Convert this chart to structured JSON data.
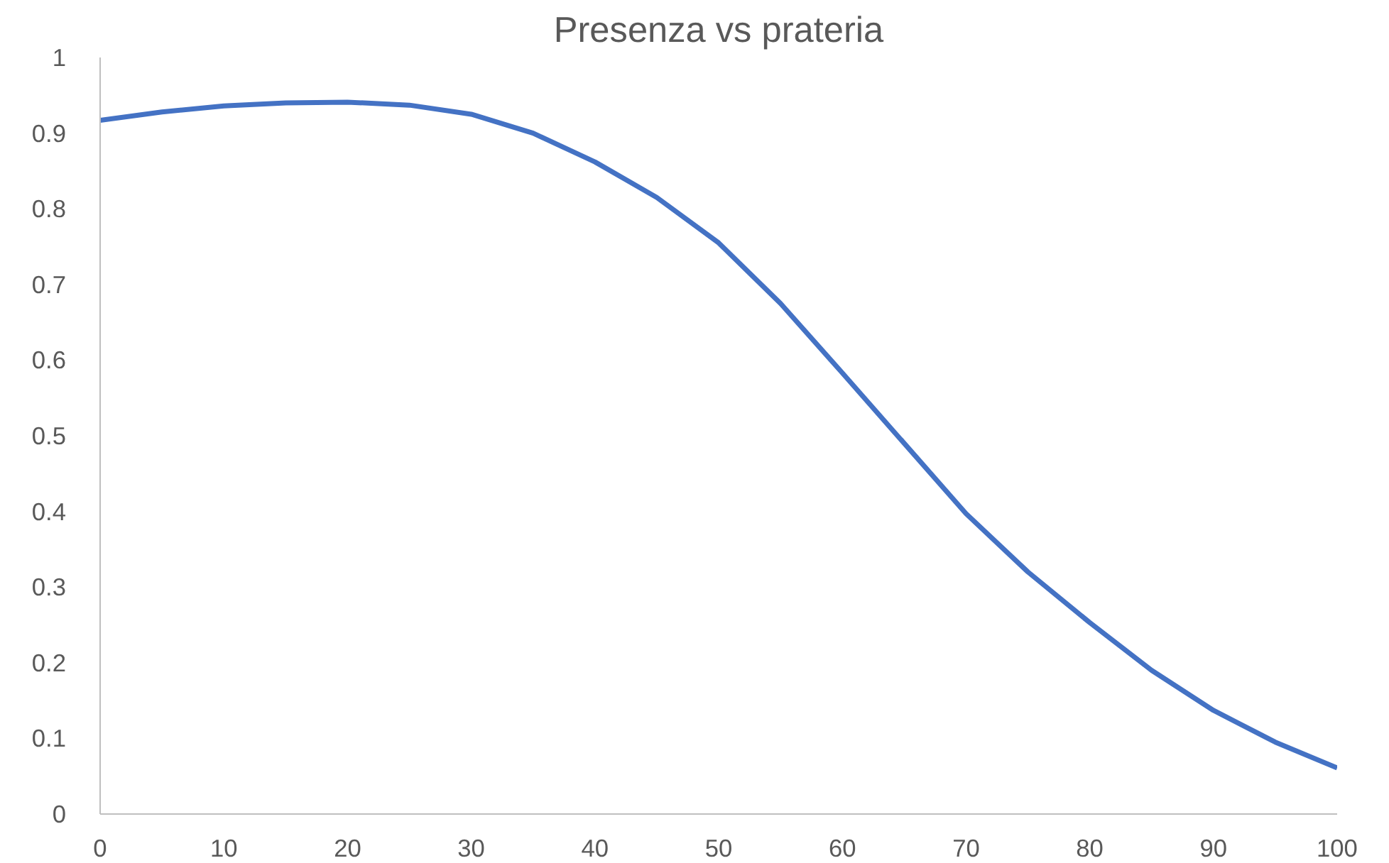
{
  "chart_data": {
    "type": "line",
    "title": "Presenza vs prateria",
    "x": [
      0,
      5,
      10,
      15,
      20,
      25,
      30,
      35,
      40,
      45,
      50,
      55,
      60,
      65,
      70,
      75,
      80,
      85,
      90,
      95,
      100
    ],
    "series": [
      {
        "color": "#4472c4",
        "values": [
          0.917,
          0.928,
          0.936,
          0.94,
          0.941,
          0.937,
          0.925,
          0.9,
          0.862,
          0.815,
          0.755,
          0.675,
          0.583,
          0.49,
          0.397,
          0.32,
          0.253,
          0.19,
          0.137,
          0.095,
          0.061
        ]
      }
    ],
    "xlim": [
      0,
      100
    ],
    "xticks": [
      0,
      10,
      20,
      30,
      40,
      50,
      60,
      70,
      80,
      90,
      100
    ],
    "ylim": [
      0,
      1
    ],
    "yticks": [
      0,
      0.1,
      0.2,
      0.3,
      0.4,
      0.5,
      0.6,
      0.7,
      0.8,
      0.9,
      1
    ],
    "grid": false,
    "marker": "none",
    "line_style": "solid"
  }
}
